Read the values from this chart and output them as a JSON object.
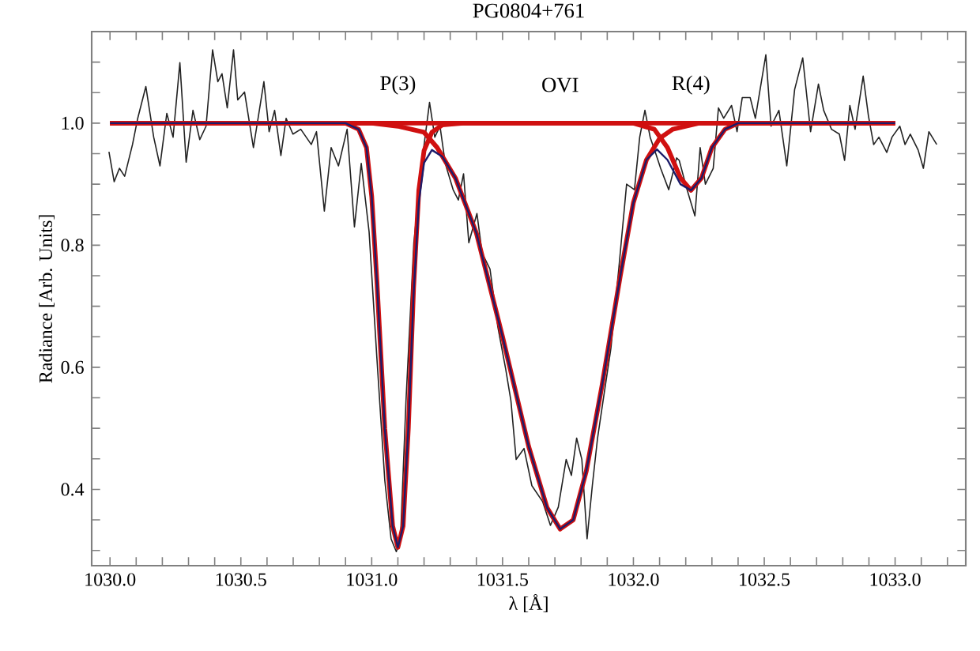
{
  "chart_data": {
    "type": "line",
    "title": "PG0804+761",
    "xlabel": "λ [Å]",
    "ylabel": "Radiance [Arb. Units]",
    "xlim": [
      1029.93,
      1033.27
    ],
    "ylim": [
      0.275,
      1.15
    ],
    "xticks": [
      {
        "value": 1030.0,
        "label": "1030.0"
      },
      {
        "value": 1030.1,
        "label": null
      },
      {
        "value": 1030.2,
        "label": null
      },
      {
        "value": 1030.3,
        "label": null
      },
      {
        "value": 1030.4,
        "label": null
      },
      {
        "value": 1030.5,
        "label": "1030.5"
      },
      {
        "value": 1030.6,
        "label": null
      },
      {
        "value": 1030.7,
        "label": null
      },
      {
        "value": 1030.8,
        "label": null
      },
      {
        "value": 1030.9,
        "label": null
      },
      {
        "value": 1031.0,
        "label": "1031.0"
      },
      {
        "value": 1031.1,
        "label": null
      },
      {
        "value": 1031.2,
        "label": null
      },
      {
        "value": 1031.3,
        "label": null
      },
      {
        "value": 1031.4,
        "label": null
      },
      {
        "value": 1031.5,
        "label": "1031.5"
      },
      {
        "value": 1031.6,
        "label": null
      },
      {
        "value": 1031.7,
        "label": null
      },
      {
        "value": 1031.8,
        "label": null
      },
      {
        "value": 1031.9,
        "label": null
      },
      {
        "value": 1032.0,
        "label": "1032.0"
      },
      {
        "value": 1032.1,
        "label": null
      },
      {
        "value": 1032.2,
        "label": null
      },
      {
        "value": 1032.3,
        "label": null
      },
      {
        "value": 1032.4,
        "label": null
      },
      {
        "value": 1032.5,
        "label": "1032.5"
      },
      {
        "value": 1032.6,
        "label": null
      },
      {
        "value": 1032.7,
        "label": null
      },
      {
        "value": 1032.8,
        "label": null
      },
      {
        "value": 1032.9,
        "label": null
      },
      {
        "value": 1033.0,
        "label": "1033.0"
      },
      {
        "value": 1033.1,
        "label": null
      },
      {
        "value": 1033.2,
        "label": null
      }
    ],
    "yticks": [
      {
        "value": 0.3,
        "label": null
      },
      {
        "value": 0.35,
        "label": null
      },
      {
        "value": 0.4,
        "label": "0.4"
      },
      {
        "value": 0.45,
        "label": null
      },
      {
        "value": 0.5,
        "label": null
      },
      {
        "value": 0.55,
        "label": null
      },
      {
        "value": 0.6,
        "label": "0.6"
      },
      {
        "value": 0.65,
        "label": null
      },
      {
        "value": 0.7,
        "label": null
      },
      {
        "value": 0.75,
        "label": null
      },
      {
        "value": 0.8,
        "label": "0.8"
      },
      {
        "value": 0.85,
        "label": null
      },
      {
        "value": 0.9,
        "label": null
      },
      {
        "value": 0.95,
        "label": null
      },
      {
        "value": 1.0,
        "label": "1.0"
      },
      {
        "value": 1.05,
        "label": null
      },
      {
        "value": 1.1,
        "label": null
      }
    ],
    "annotations": [
      "P(3)",
      "OVI",
      "R(4)"
    ],
    "series": [
      {
        "color": "#222222",
        "x": [
          1029.996,
          1030.016,
          1030.036,
          1030.056,
          1030.086,
          1030.106,
          1030.137,
          1030.167,
          1030.191,
          1030.217,
          1030.241,
          1030.267,
          1030.291,
          1030.317,
          1030.343,
          1030.367,
          1030.392,
          1030.412,
          1030.428,
          1030.448,
          1030.472,
          1030.488,
          1030.514,
          1030.548,
          1030.588,
          1030.608,
          1030.629,
          1030.653,
          1030.673,
          1030.699,
          1030.729,
          1030.769,
          1030.789,
          1030.819,
          1030.845,
          1030.873,
          1030.906,
          1030.934,
          1030.96,
          1030.99,
          1031.02,
          1031.05,
          1031.074,
          1031.094,
          1031.11,
          1031.131,
          1031.161,
          1031.191,
          1031.221,
          1031.241,
          1031.261,
          1031.281,
          1031.311,
          1031.331,
          1031.351,
          1031.371,
          1031.402,
          1031.422,
          1031.452,
          1031.482,
          1031.512,
          1031.532,
          1031.552,
          1031.582,
          1031.612,
          1031.653,
          1031.683,
          1031.713,
          1031.743,
          1031.763,
          1031.783,
          1031.803,
          1031.823,
          1031.843,
          1031.863,
          1031.884,
          1031.914,
          1031.944,
          1031.974,
          1032.004,
          1032.024,
          1032.044,
          1032.064,
          1032.084,
          1032.104,
          1032.135,
          1032.165,
          1032.175,
          1032.205,
          1032.235,
          1032.255,
          1032.275,
          1032.305,
          1032.325,
          1032.345,
          1032.375,
          1032.396,
          1032.416,
          1032.446,
          1032.466,
          1032.506,
          1032.526,
          1032.556,
          1032.586,
          1032.616,
          1032.647,
          1032.677,
          1032.707,
          1032.727,
          1032.757,
          1032.787,
          1032.807,
          1032.827,
          1032.847,
          1032.878,
          1032.898,
          1032.918,
          1032.938,
          1032.968,
          1032.988,
          1033.018,
          1033.038,
          1033.058,
          1033.088,
          1033.108,
          1033.129,
          1033.159
        ],
        "values": [
          0.953,
          0.904,
          0.926,
          0.913,
          0.965,
          1.008,
          1.06,
          0.977,
          0.93,
          1.016,
          0.977,
          1.099,
          0.936,
          1.021,
          0.973,
          0.995,
          1.12,
          1.068,
          1.081,
          1.025,
          1.12,
          1.038,
          1.051,
          0.96,
          1.068,
          0.986,
          1.021,
          0.947,
          1.008,
          0.982,
          0.99,
          0.965,
          0.986,
          0.856,
          0.96,
          0.93,
          0.99,
          0.83,
          0.934,
          0.822,
          0.614,
          0.415,
          0.319,
          0.298,
          0.319,
          0.545,
          0.804,
          0.934,
          1.034,
          0.977,
          0.995,
          0.934,
          0.891,
          0.874,
          0.917,
          0.804,
          0.852,
          0.787,
          0.761,
          0.666,
          0.597,
          0.545,
          0.449,
          0.467,
          0.406,
          0.38,
          0.341,
          0.371,
          0.449,
          0.423,
          0.484,
          0.449,
          0.319,
          0.406,
          0.484,
          0.545,
          0.631,
          0.761,
          0.9,
          0.891,
          0.977,
          1.021,
          0.977,
          0.952,
          0.926,
          0.891,
          0.943,
          0.939,
          0.891,
          0.848,
          0.96,
          0.9,
          0.926,
          1.025,
          1.008,
          1.029,
          0.986,
          1.042,
          1.042,
          1.008,
          1.112,
          0.995,
          1.021,
          0.93,
          1.055,
          1.107,
          0.986,
          1.064,
          1.021,
          0.99,
          0.982,
          0.939,
          1.029,
          0.99,
          1.077,
          1.012,
          0.965,
          0.977,
          0.952,
          0.977,
          0.995,
          0.965,
          0.982,
          0.956,
          0.926,
          0.986,
          0.965
        ]
      },
      {
        "color": "#d01010",
        "x": [
          1030.0,
          1030.9,
          1030.95,
          1030.98,
          1031.0,
          1031.02,
          1031.05,
          1031.08,
          1031.1,
          1031.12,
          1031.14,
          1031.16,
          1031.18,
          1031.2,
          1031.23,
          1031.27,
          1031.35,
          1033.0
        ],
        "values": [
          1.0,
          1.0,
          0.99,
          0.96,
          0.88,
          0.74,
          0.5,
          0.34,
          0.305,
          0.34,
          0.5,
          0.73,
          0.89,
          0.955,
          0.985,
          0.997,
          1.0,
          1.0
        ]
      },
      {
        "color": "#d01010",
        "x": [
          1030.0,
          1031.0,
          1031.1,
          1031.2,
          1031.25,
          1031.32,
          1031.4,
          1031.5,
          1031.6,
          1031.67,
          1031.72,
          1031.77,
          1031.82,
          1031.88,
          1031.95,
          1032.0,
          1032.05,
          1032.1,
          1032.15,
          1032.25,
          1033.0
        ],
        "values": [
          1.0,
          1.0,
          0.995,
          0.985,
          0.96,
          0.91,
          0.82,
          0.65,
          0.47,
          0.37,
          0.335,
          0.35,
          0.43,
          0.57,
          0.75,
          0.87,
          0.94,
          0.975,
          0.99,
          1.0,
          1.0
        ]
      },
      {
        "color": "#d01010",
        "x": [
          1030.0,
          1032.0,
          1032.08,
          1032.13,
          1032.18,
          1032.22,
          1032.26,
          1032.3,
          1032.35,
          1032.4,
          1033.0
        ],
        "values": [
          1.0,
          1.0,
          0.99,
          0.96,
          0.91,
          0.89,
          0.91,
          0.96,
          0.99,
          1.0,
          1.0
        ]
      },
      {
        "color": "#1c1c6a",
        "x": [
          1030.0,
          1030.9,
          1030.95,
          1030.98,
          1031.0,
          1031.02,
          1031.05,
          1031.08,
          1031.1,
          1031.12,
          1031.14,
          1031.16,
          1031.18,
          1031.2,
          1031.23,
          1031.27,
          1031.32,
          1031.4,
          1031.5,
          1031.6,
          1031.67,
          1031.72,
          1031.77,
          1031.82,
          1031.88,
          1031.95,
          1032.0,
          1032.05,
          1032.09,
          1032.13,
          1032.18,
          1032.22,
          1032.26,
          1032.3,
          1032.35,
          1032.4,
          1033.0
        ],
        "values": [
          1.0,
          1.0,
          0.99,
          0.96,
          0.88,
          0.74,
          0.5,
          0.34,
          0.305,
          0.34,
          0.5,
          0.72,
          0.87,
          0.935,
          0.956,
          0.945,
          0.91,
          0.82,
          0.65,
          0.47,
          0.37,
          0.335,
          0.35,
          0.43,
          0.57,
          0.75,
          0.87,
          0.94,
          0.957,
          0.94,
          0.9,
          0.89,
          0.91,
          0.96,
          0.99,
          1.0,
          1.0
        ]
      }
    ]
  }
}
